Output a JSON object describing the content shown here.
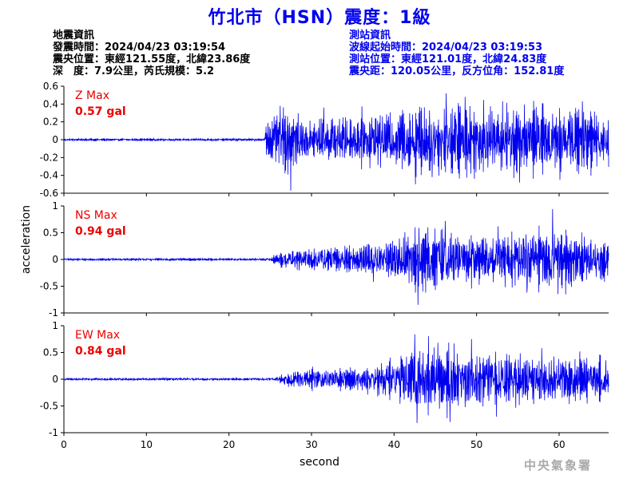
{
  "title": "竹北市（HSN）震度：1級",
  "quake_info": {
    "heading": "地震資訊",
    "origin_time": "發震時間：2024/04/23 03:19:54",
    "epicenter": "震央位置：東經121.55度，北緯23.86度",
    "depth_magnitude": "深　度：7.9公里，芮氏規模：5.2"
  },
  "station_info": {
    "heading": "測站資訊",
    "wave_start": "波線起始時間：2024/04/23 03:19:53",
    "location": "測站位置：東經121.01度，北緯24.83度",
    "distance": "震央距：120.05公里，反方位角：152.81度"
  },
  "agency": "中央氣象署",
  "colors": {
    "title": "#0000ee",
    "trace": "#0000ee",
    "max_label": "#ee0000",
    "axis": "#000000"
  },
  "chart_data": {
    "type": "line",
    "xlabel": "second",
    "ylabel": "acceleration",
    "xlim": [
      0,
      66
    ],
    "xticks": [
      0,
      10,
      20,
      30,
      40,
      50,
      60
    ],
    "xtick_labels": [
      "0",
      "10",
      "20",
      "30",
      "40",
      "50",
      "60"
    ],
    "grid": false,
    "panels": [
      {
        "name": "Z",
        "max_title": "Z Max",
        "max_value": "0.57 gal",
        "ylim": [
          -0.6,
          0.6
        ],
        "yticks": [
          0.6,
          0.4,
          0.2,
          0,
          -0.2,
          -0.4,
          -0.6
        ],
        "ytick_labels": [
          "0.6",
          "0.4",
          "0.2",
          "0",
          "-0.2",
          "-0.4",
          "-0.6"
        ],
        "noise_amplitude": 0.012,
        "envelope": [
          [
            0,
            0.012
          ],
          [
            24.3,
            0.012
          ],
          [
            24.5,
            0.22
          ],
          [
            27,
            0.33
          ],
          [
            28,
            0.28
          ],
          [
            30,
            0.22
          ],
          [
            35,
            0.25
          ],
          [
            40,
            0.3
          ],
          [
            45,
            0.35
          ],
          [
            50,
            0.35
          ],
          [
            55,
            0.35
          ],
          [
            60,
            0.32
          ],
          [
            64,
            0.3
          ],
          [
            66,
            0.25
          ]
        ],
        "peaks": [
          [
            27.5,
            -0.57
          ],
          [
            26.2,
            0.38
          ],
          [
            42.6,
            -0.5
          ],
          [
            46.3,
            0.52
          ],
          [
            48.6,
            0.48
          ],
          [
            62.8,
            0.43
          ],
          [
            55.2,
            -0.48
          ],
          [
            60.1,
            -0.45
          ],
          [
            31.5,
            0.36
          ],
          [
            44.6,
            -0.42
          ]
        ]
      },
      {
        "name": "NS",
        "max_title": "NS Max",
        "max_value": "0.94 gal",
        "ylim": [
          -1,
          1
        ],
        "yticks": [
          1,
          0.5,
          0,
          -0.5,
          -1
        ],
        "ytick_labels": [
          "1",
          "0.5",
          "0",
          "-0.5",
          "-1"
        ],
        "noise_amplitude": 0.02,
        "envelope": [
          [
            0,
            0.02
          ],
          [
            25,
            0.02
          ],
          [
            26,
            0.12
          ],
          [
            30,
            0.2
          ],
          [
            35,
            0.25
          ],
          [
            40,
            0.35
          ],
          [
            43,
            0.55
          ],
          [
            47,
            0.5
          ],
          [
            52,
            0.4
          ],
          [
            57,
            0.5
          ],
          [
            60,
            0.55
          ],
          [
            63,
            0.4
          ],
          [
            66,
            0.35
          ]
        ],
        "peaks": [
          [
            59.2,
            0.94
          ],
          [
            42.9,
            -0.85
          ],
          [
            46.2,
            0.72
          ],
          [
            60.8,
            -0.65
          ],
          [
            44.1,
            0.6
          ],
          [
            52.6,
            0.62
          ],
          [
            56.1,
            -0.62
          ],
          [
            37.5,
            -0.42
          ]
        ]
      },
      {
        "name": "EW",
        "max_title": "EW Max",
        "max_value": "0.84 gal",
        "ylim": [
          -1,
          1
        ],
        "yticks": [
          1,
          0.5,
          0,
          -0.5,
          -1
        ],
        "ytick_labels": [
          "1",
          "0.5",
          "0",
          "-0.5",
          "-1"
        ],
        "noise_amplitude": 0.02,
        "envelope": [
          [
            0,
            0.02
          ],
          [
            25.5,
            0.02
          ],
          [
            26.5,
            0.1
          ],
          [
            30,
            0.18
          ],
          [
            36,
            0.2
          ],
          [
            40,
            0.35
          ],
          [
            42,
            0.55
          ],
          [
            46,
            0.6
          ],
          [
            50,
            0.45
          ],
          [
            55,
            0.45
          ],
          [
            60,
            0.4
          ],
          [
            66,
            0.3
          ]
        ],
        "peaks": [
          [
            42.5,
            0.84
          ],
          [
            42.8,
            -0.82
          ],
          [
            46.8,
            -0.8
          ],
          [
            49.4,
            0.75
          ],
          [
            45.3,
            0.68
          ],
          [
            62.5,
            0.52
          ],
          [
            52.4,
            -0.7
          ],
          [
            57.9,
            0.58
          ]
        ]
      }
    ]
  }
}
